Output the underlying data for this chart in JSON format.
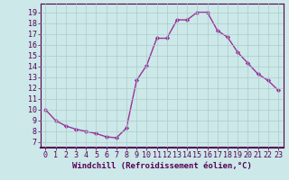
{
  "x": [
    0,
    1,
    2,
    3,
    4,
    5,
    6,
    7,
    8,
    9,
    10,
    11,
    12,
    13,
    14,
    15,
    16,
    17,
    18,
    19,
    20,
    21,
    22,
    23
  ],
  "y": [
    10.0,
    9.0,
    8.5,
    8.2,
    8.0,
    7.8,
    7.5,
    7.4,
    8.3,
    12.7,
    14.1,
    16.6,
    16.6,
    18.3,
    18.3,
    19.0,
    19.0,
    17.3,
    16.7,
    15.3,
    14.3,
    13.3,
    12.7,
    11.8
  ],
  "line_color": "#993399",
  "marker": "D",
  "markersize": 2.2,
  "linewidth": 1.0,
  "bg_color": "#cce8e8",
  "grid_color": "#aacccc",
  "xlabel": "Windchill (Refroidissement éolien,°C)",
  "xlabel_fontsize": 6.5,
  "yticks": [
    7,
    8,
    9,
    10,
    11,
    12,
    13,
    14,
    15,
    16,
    17,
    18,
    19
  ],
  "xlim": [
    -0.5,
    23.5
  ],
  "ylim": [
    6.5,
    19.8
  ],
  "tick_fontsize": 6.0
}
